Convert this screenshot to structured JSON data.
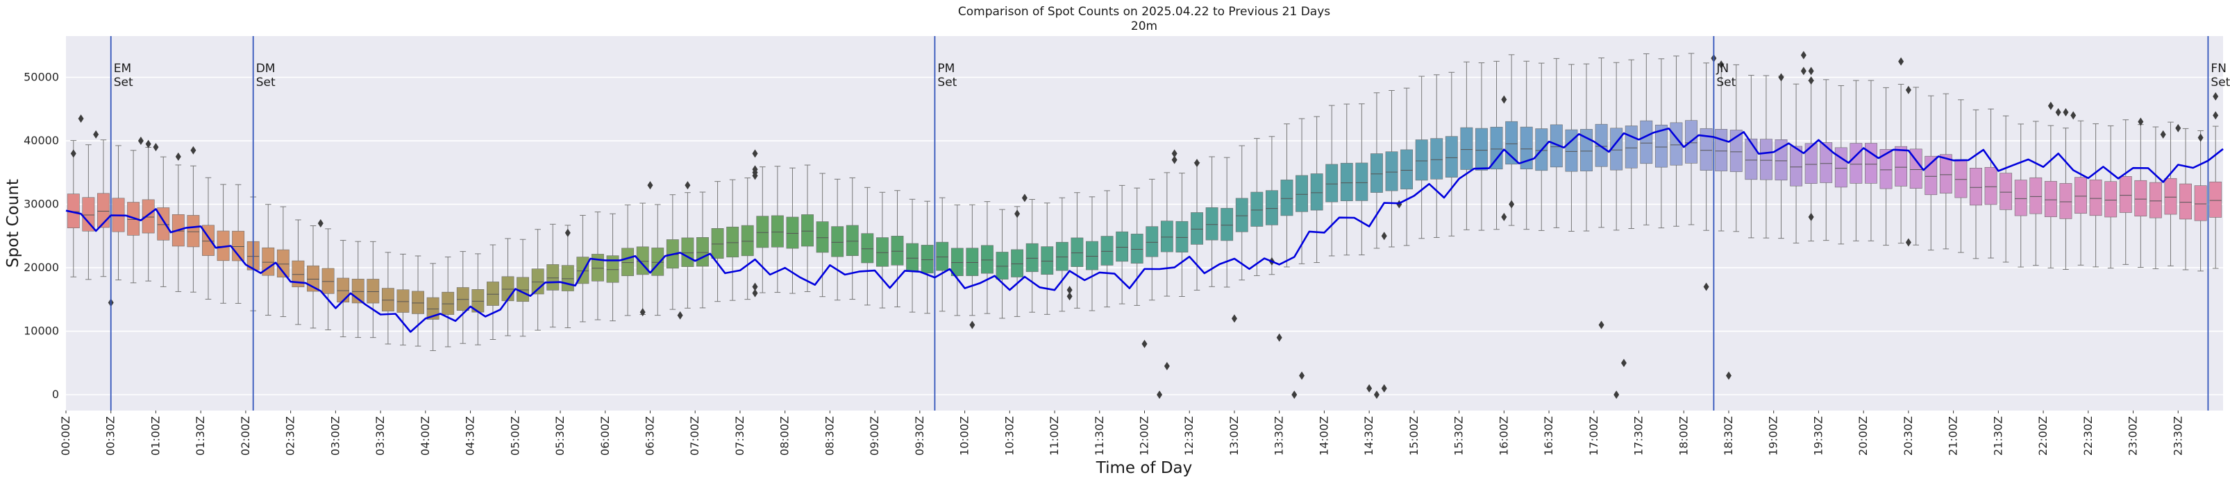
{
  "chart_data": {
    "type": "box",
    "title": "Comparison of Spot Counts on 2025.04.22 to Previous 21 Days",
    "subtitle": "20m",
    "xlabel": "Time of Day",
    "ylabel": "Spot Count",
    "ylim": [
      -2500,
      56500
    ],
    "x_range_minutes": [
      0,
      1440
    ],
    "bin_minutes": 10,
    "grid": true,
    "y_ticks": [
      0,
      10000,
      20000,
      30000,
      40000,
      50000
    ],
    "x_tick_labels": [
      "00:00Z",
      "00:30Z",
      "01:00Z",
      "01:30Z",
      "02:00Z",
      "02:30Z",
      "03:00Z",
      "03:30Z",
      "04:00Z",
      "04:30Z",
      "05:00Z",
      "05:30Z",
      "06:00Z",
      "06:30Z",
      "07:00Z",
      "07:30Z",
      "08:00Z",
      "08:30Z",
      "09:00Z",
      "09:30Z",
      "10:00Z",
      "10:30Z",
      "11:00Z",
      "11:30Z",
      "12:00Z",
      "12:30Z",
      "13:00Z",
      "13:30Z",
      "14:00Z",
      "14:30Z",
      "15:00Z",
      "15:30Z",
      "16:00Z",
      "16:30Z",
      "17:00Z",
      "17:30Z",
      "18:00Z",
      "18:30Z",
      "19:00Z",
      "19:30Z",
      "20:00Z",
      "20:30Z",
      "21:00Z",
      "21:30Z",
      "22:00Z",
      "22:30Z",
      "23:00Z",
      "23:30Z"
    ],
    "distribution_anchors": {
      "minutes": [
        0,
        60,
        120,
        180,
        240,
        330,
        420,
        480,
        570,
        630,
        720,
        780,
        840,
        900,
        960,
        1020,
        1080,
        1140,
        1200,
        1260,
        1320,
        1380,
        1440
      ],
      "median": [
        29000,
        27000,
        23000,
        16500,
        14000,
        18000,
        23000,
        25500,
        22000,
        20000,
        24000,
        27000,
        33000,
        36000,
        39000,
        39000,
        39000,
        37000,
        36000,
        34000,
        31000,
        30500,
        30500
      ]
    },
    "series": [
      {
        "name": "2025.04.22",
        "color": "#0000dd",
        "points_minutes": [
          [
            0,
            29000
          ],
          [
            30,
            27000
          ],
          [
            60,
            28500
          ],
          [
            90,
            25000
          ],
          [
            120,
            21500
          ],
          [
            140,
            19000
          ],
          [
            180,
            15500
          ],
          [
            220,
            12000
          ],
          [
            250,
            11500
          ],
          [
            300,
            15000
          ],
          [
            360,
            21000
          ],
          [
            420,
            21500
          ],
          [
            480,
            19000
          ],
          [
            540,
            19000
          ],
          [
            600,
            18500
          ],
          [
            630,
            17000
          ],
          [
            660,
            18000
          ],
          [
            720,
            19000
          ],
          [
            760,
            21000
          ],
          [
            800,
            20000
          ],
          [
            840,
            26000
          ],
          [
            870,
            28500
          ],
          [
            900,
            31000
          ],
          [
            960,
            37000
          ],
          [
            1000,
            39500
          ],
          [
            1050,
            40500
          ],
          [
            1080,
            41000
          ],
          [
            1110,
            40000
          ],
          [
            1140,
            39000
          ],
          [
            1200,
            38000
          ],
          [
            1260,
            37000
          ],
          [
            1320,
            36500
          ],
          [
            1380,
            34500
          ],
          [
            1440,
            37000
          ]
        ]
      }
    ],
    "vertical_markers": [
      {
        "label_line1": "EM",
        "label_line2": "Set",
        "minute": 30,
        "color": "#3355bb"
      },
      {
        "label_line1": "DM",
        "label_line2": "Set",
        "minute": 125,
        "color": "#3355bb"
      },
      {
        "label_line1": "PM",
        "label_line2": "Set",
        "minute": 580,
        "color": "#3355bb"
      },
      {
        "label_line1": "JN",
        "label_line2": "Set",
        "minute": 1100,
        "color": "#3355bb"
      },
      {
        "label_line1": "FN",
        "label_line2": "Set",
        "minute": 1430,
        "color": "#3355bb"
      }
    ],
    "outliers": [
      {
        "minute": 5,
        "value": 38000
      },
      {
        "minute": 10,
        "value": 43500
      },
      {
        "minute": 20,
        "value": 41000
      },
      {
        "minute": 30,
        "value": 14500
      },
      {
        "minute": 50,
        "value": 40000
      },
      {
        "minute": 55,
        "value": 39500
      },
      {
        "minute": 60,
        "value": 39000
      },
      {
        "minute": 75,
        "value": 37500
      },
      {
        "minute": 85,
        "value": 38500
      },
      {
        "minute": 170,
        "value": 27000
      },
      {
        "minute": 335,
        "value": 25500
      },
      {
        "minute": 385,
        "value": 13000
      },
      {
        "minute": 390,
        "value": 33000
      },
      {
        "minute": 410,
        "value": 12500
      },
      {
        "minute": 415,
        "value": 33000
      },
      {
        "minute": 460,
        "value": 38000
      },
      {
        "minute": 460,
        "value": 35500
      },
      {
        "minute": 460,
        "value": 35000
      },
      {
        "minute": 460,
        "value": 34500
      },
      {
        "minute": 460,
        "value": 16000
      },
      {
        "minute": 460,
        "value": 17000
      },
      {
        "minute": 605,
        "value": 11000
      },
      {
        "minute": 635,
        "value": 28500
      },
      {
        "minute": 640,
        "value": 31000
      },
      {
        "minute": 670,
        "value": 15500
      },
      {
        "minute": 670,
        "value": 16500
      },
      {
        "minute": 720,
        "value": 8000
      },
      {
        "minute": 730,
        "value": 0
      },
      {
        "minute": 735,
        "value": 4500
      },
      {
        "minute": 740,
        "value": 38000
      },
      {
        "minute": 740,
        "value": 37000
      },
      {
        "minute": 755,
        "value": 36500
      },
      {
        "minute": 780,
        "value": 12000
      },
      {
        "minute": 805,
        "value": 21000
      },
      {
        "minute": 810,
        "value": 9000
      },
      {
        "minute": 820,
        "value": 0
      },
      {
        "minute": 825,
        "value": 3000
      },
      {
        "minute": 870,
        "value": 1000
      },
      {
        "minute": 875,
        "value": 0
      },
      {
        "minute": 880,
        "value": 1000
      },
      {
        "minute": 880,
        "value": 25000
      },
      {
        "minute": 890,
        "value": 30000
      },
      {
        "minute": 960,
        "value": 46500
      },
      {
        "minute": 960,
        "value": 28000
      },
      {
        "minute": 965,
        "value": 30000
      },
      {
        "minute": 1025,
        "value": 11000
      },
      {
        "minute": 1035,
        "value": 0
      },
      {
        "minute": 1040,
        "value": 5000
      },
      {
        "minute": 1095,
        "value": 17000
      },
      {
        "minute": 1100,
        "value": 53000
      },
      {
        "minute": 1105,
        "value": 52000
      },
      {
        "minute": 1110,
        "value": 3000
      },
      {
        "minute": 1145,
        "value": 50000
      },
      {
        "minute": 1160,
        "value": 53500
      },
      {
        "minute": 1160,
        "value": 51000
      },
      {
        "minute": 1165,
        "value": 51000
      },
      {
        "minute": 1165,
        "value": 49500
      },
      {
        "minute": 1165,
        "value": 28000
      },
      {
        "minute": 1225,
        "value": 52500
      },
      {
        "minute": 1230,
        "value": 48000
      },
      {
        "minute": 1230,
        "value": 24000
      },
      {
        "minute": 1325,
        "value": 45500
      },
      {
        "minute": 1330,
        "value": 44500
      },
      {
        "minute": 1335,
        "value": 44500
      },
      {
        "minute": 1340,
        "value": 44000
      },
      {
        "minute": 1385,
        "value": 43000
      },
      {
        "minute": 1400,
        "value": 41000
      },
      {
        "minute": 1410,
        "value": 42000
      },
      {
        "minute": 1425,
        "value": 40500
      },
      {
        "minute": 1435,
        "value": 47000
      },
      {
        "minute": 1435,
        "value": 44000
      }
    ],
    "hue_colors": [
      {
        "minute": 0,
        "color": "#e28989"
      },
      {
        "minute": 120,
        "color": "#d4956c"
      },
      {
        "minute": 240,
        "color": "#ae9560"
      },
      {
        "minute": 360,
        "color": "#86a560"
      },
      {
        "minute": 480,
        "color": "#62a460"
      },
      {
        "minute": 600,
        "color": "#4fa474"
      },
      {
        "minute": 720,
        "color": "#52a494"
      },
      {
        "minute": 840,
        "color": "#55a0a4"
      },
      {
        "minute": 960,
        "color": "#6a9ec4"
      },
      {
        "minute": 1080,
        "color": "#9aa6d8"
      },
      {
        "minute": 1200,
        "color": "#c795d8"
      },
      {
        "minute": 1320,
        "color": "#d891c4"
      },
      {
        "minute": 1440,
        "color": "#e28aa6"
      }
    ]
  }
}
